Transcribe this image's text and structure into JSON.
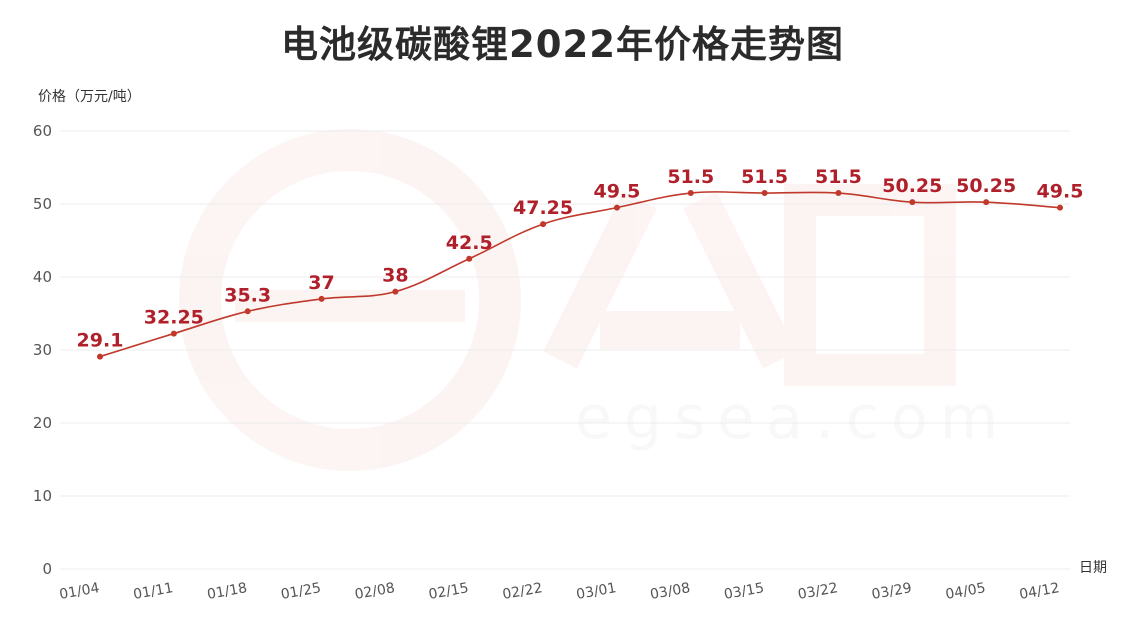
{
  "chart_data": {
    "type": "line",
    "title": "电池级碳酸锂2022年价格走势图",
    "ylabel": "价格（万元/吨）",
    "xlabel": "日期",
    "x": [
      "01/04",
      "01/11",
      "01/18",
      "01/25",
      "02/08",
      "02/15",
      "02/22",
      "03/01",
      "03/08",
      "03/15",
      "03/22",
      "03/29",
      "04/05",
      "04/12"
    ],
    "series": [
      {
        "values": [
          29.1,
          32.25,
          35.3,
          37,
          38,
          42.5,
          47.25,
          49.5,
          51.5,
          51.5,
          51.5,
          50.25,
          50.25,
          49.5
        ],
        "data_labels": [
          "29.1",
          "32.25",
          "35.3",
          "37",
          "38",
          "42.5",
          "47.25",
          "49.5",
          "51.5",
          "51.5",
          "51.5",
          "50.25",
          "50.25",
          "49.5"
        ]
      }
    ],
    "ylim": [
      0,
      60
    ],
    "yticks": [
      0,
      10,
      20,
      30,
      40,
      50,
      60
    ],
    "grid": "horizontal",
    "legend": "none",
    "colors": {
      "line": "#c0392b",
      "label": "#b0202a",
      "grid": "#ececec",
      "axis_text": "#555555"
    }
  },
  "watermark": {
    "text": "egsea.com",
    "mark": "e公司"
  }
}
